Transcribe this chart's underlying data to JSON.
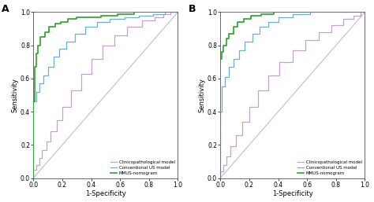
{
  "panel_A": {
    "clinico": {
      "x": [
        0.0,
        0.0,
        0.02,
        0.02,
        0.04,
        0.04,
        0.06,
        0.06,
        0.09,
        0.09,
        0.12,
        0.12,
        0.16,
        0.16,
        0.2,
        0.2,
        0.26,
        0.26,
        0.33,
        0.33,
        0.4,
        0.4,
        0.48,
        0.48,
        0.56,
        0.56,
        0.65,
        0.65,
        0.75,
        0.75,
        0.84,
        0.84,
        0.9,
        0.9,
        0.95,
        0.95,
        1.0
      ],
      "y": [
        0.0,
        0.05,
        0.05,
        0.08,
        0.08,
        0.12,
        0.12,
        0.17,
        0.17,
        0.22,
        0.22,
        0.28,
        0.28,
        0.35,
        0.35,
        0.43,
        0.43,
        0.53,
        0.53,
        0.63,
        0.63,
        0.72,
        0.72,
        0.8,
        0.8,
        0.86,
        0.86,
        0.91,
        0.91,
        0.95,
        0.95,
        0.97,
        0.97,
        0.99,
        0.99,
        1.0,
        1.0
      ],
      "color": "#c8a0cc"
    },
    "conventional": {
      "x": [
        0.0,
        0.0,
        0.02,
        0.02,
        0.04,
        0.04,
        0.07,
        0.07,
        0.1,
        0.1,
        0.14,
        0.14,
        0.18,
        0.18,
        0.23,
        0.23,
        0.29,
        0.29,
        0.36,
        0.36,
        0.44,
        0.44,
        0.53,
        0.53,
        0.63,
        0.63,
        0.73,
        0.73,
        0.83,
        0.83,
        0.91,
        0.91,
        0.96,
        0.96,
        1.0
      ],
      "y": [
        0.0,
        0.46,
        0.46,
        0.52,
        0.52,
        0.57,
        0.57,
        0.62,
        0.62,
        0.67,
        0.67,
        0.73,
        0.73,
        0.78,
        0.78,
        0.82,
        0.82,
        0.87,
        0.87,
        0.91,
        0.91,
        0.94,
        0.94,
        0.96,
        0.96,
        0.97,
        0.97,
        0.98,
        0.98,
        0.99,
        0.99,
        1.0,
        1.0,
        1.0,
        1.0
      ],
      "color": "#6baed6"
    },
    "mmus": {
      "x": [
        0.0,
        0.0,
        0.01,
        0.01,
        0.02,
        0.02,
        0.03,
        0.03,
        0.05,
        0.05,
        0.08,
        0.08,
        0.11,
        0.11,
        0.15,
        0.15,
        0.19,
        0.19,
        0.24,
        0.24,
        0.3,
        0.3,
        0.38,
        0.38,
        0.47,
        0.47,
        0.58,
        0.58,
        0.7,
        0.7,
        0.82,
        0.82,
        0.91,
        0.91,
        0.97,
        0.97,
        1.0
      ],
      "y": [
        0.0,
        0.46,
        0.46,
        0.67,
        0.67,
        0.75,
        0.75,
        0.8,
        0.8,
        0.85,
        0.85,
        0.88,
        0.88,
        0.91,
        0.91,
        0.93,
        0.93,
        0.94,
        0.94,
        0.96,
        0.96,
        0.97,
        0.97,
        0.97,
        0.97,
        0.98,
        0.98,
        0.99,
        0.99,
        1.0,
        1.0,
        1.0,
        1.0,
        1.0,
        1.0,
        1.0,
        1.0
      ],
      "color": "#2ca02c"
    }
  },
  "panel_B": {
    "clinico": {
      "x": [
        0.0,
        0.0,
        0.02,
        0.02,
        0.04,
        0.04,
        0.07,
        0.07,
        0.11,
        0.11,
        0.15,
        0.15,
        0.2,
        0.2,
        0.26,
        0.26,
        0.33,
        0.33,
        0.41,
        0.41,
        0.5,
        0.5,
        0.59,
        0.59,
        0.68,
        0.68,
        0.77,
        0.77,
        0.85,
        0.85,
        0.92,
        0.92,
        0.97,
        0.97,
        1.0
      ],
      "y": [
        0.0,
        0.04,
        0.04,
        0.08,
        0.08,
        0.13,
        0.13,
        0.19,
        0.19,
        0.26,
        0.26,
        0.34,
        0.34,
        0.43,
        0.43,
        0.53,
        0.53,
        0.62,
        0.62,
        0.7,
        0.7,
        0.77,
        0.77,
        0.83,
        0.83,
        0.88,
        0.88,
        0.92,
        0.92,
        0.96,
        0.96,
        0.98,
        0.98,
        1.0,
        1.0
      ],
      "color": "#c8a0cc"
    },
    "conventional": {
      "x": [
        0.0,
        0.0,
        0.01,
        0.01,
        0.03,
        0.03,
        0.06,
        0.06,
        0.09,
        0.09,
        0.13,
        0.13,
        0.17,
        0.17,
        0.22,
        0.22,
        0.27,
        0.27,
        0.33,
        0.33,
        0.4,
        0.4,
        0.5,
        0.5,
        0.62,
        0.62,
        0.75,
        0.75,
        0.87,
        0.87,
        0.95,
        0.95,
        1.0
      ],
      "y": [
        0.0,
        0.4,
        0.4,
        0.55,
        0.55,
        0.61,
        0.61,
        0.67,
        0.67,
        0.72,
        0.72,
        0.77,
        0.77,
        0.82,
        0.82,
        0.87,
        0.87,
        0.91,
        0.91,
        0.94,
        0.94,
        0.97,
        0.97,
        0.99,
        0.99,
        1.0,
        1.0,
        1.0,
        1.0,
        1.0,
        1.0,
        1.0,
        1.0
      ],
      "color": "#6baed6"
    },
    "mmus": {
      "x": [
        0.0,
        0.0,
        0.01,
        0.01,
        0.02,
        0.02,
        0.04,
        0.04,
        0.06,
        0.06,
        0.09,
        0.09,
        0.12,
        0.12,
        0.16,
        0.16,
        0.21,
        0.21,
        0.28,
        0.28,
        0.37,
        0.37,
        0.5,
        0.5,
        0.65,
        0.65,
        0.82,
        0.82,
        0.93,
        0.93,
        1.0
      ],
      "y": [
        0.0,
        0.72,
        0.72,
        0.76,
        0.76,
        0.8,
        0.8,
        0.84,
        0.84,
        0.87,
        0.87,
        0.91,
        0.91,
        0.94,
        0.94,
        0.96,
        0.96,
        0.98,
        0.98,
        0.99,
        0.99,
        1.0,
        1.0,
        1.0,
        1.0,
        1.0,
        1.0,
        1.0,
        1.0,
        1.0,
        1.0
      ],
      "color": "#2ca02c"
    }
  },
  "legend_labels": [
    "Clinicopathological model",
    "Conventional US model",
    "MMUS-nomogram"
  ],
  "legend_colors": [
    "#c8a0cc",
    "#6baed6",
    "#2ca02c"
  ],
  "xlabel": "1-Specificity",
  "ylabel": "Sensitivity",
  "tick_vals": [
    0.0,
    0.2,
    0.4,
    0.6,
    0.8,
    1.0
  ],
  "tick_labels": [
    "0.0",
    "0.2",
    "0.4",
    "0.6",
    "0.8",
    "1.0"
  ],
  "diagonal_color": "#c0c0c0",
  "bg_color": "#ffffff"
}
